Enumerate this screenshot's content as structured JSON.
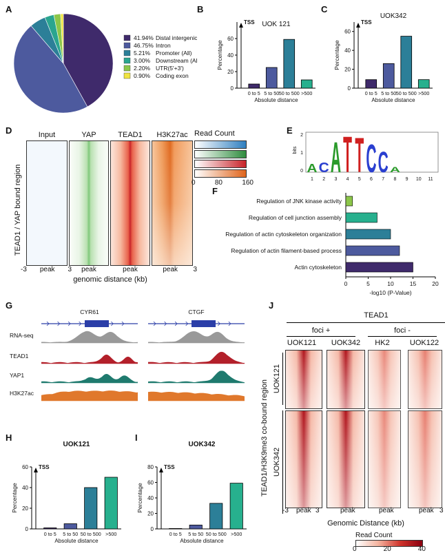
{
  "panels": {
    "A": {
      "label": "A",
      "chart_data": {
        "type": "pie",
        "slices": [
          {
            "label": "Distal intergenic",
            "pct_text": "41.94%",
            "value": 41.94,
            "color": "#3f2a6b"
          },
          {
            "label": "Intron",
            "pct_text": "46.75%",
            "value": 46.75,
            "color": "#4d5a9e"
          },
          {
            "label": "Promoter (All)",
            "pct_text": "5.21%",
            "value": 5.21,
            "color": "#2c7f98"
          },
          {
            "label": "Downstream (All)",
            "pct_text": "3.00%",
            "value": 3.0,
            "color": "#2aa58f"
          },
          {
            "label": "UTR(5'+3')",
            "pct_text": "2.20%",
            "value": 2.2,
            "color": "#8cc64a"
          },
          {
            "label": "Coding exon",
            "pct_text": "0.90%",
            "value": 0.9,
            "color": "#f0e442"
          }
        ]
      }
    },
    "B": {
      "label": "B",
      "chart_data": {
        "type": "bar",
        "title": "UOK 121",
        "categories": [
          "0 to 5",
          "5 to 50",
          "50 to 500",
          ">500"
        ],
        "values": [
          5,
          25,
          59,
          10
        ],
        "colors": [
          "#3f2a6b",
          "#4d5a9e",
          "#2c7f98",
          "#27b08e"
        ],
        "ylabel": "Percentage",
        "xlabel": "Absolute distance",
        "yticks": [
          "0",
          "20",
          "40",
          "60"
        ],
        "ylim": [
          0,
          80
        ],
        "annotation": "TSS"
      }
    },
    "C": {
      "label": "C",
      "chart_data": {
        "type": "bar",
        "title": "UOK342",
        "categories": [
          "0 to 5",
          "5 to 50",
          "50 to 500",
          ">500"
        ],
        "values": [
          9,
          26,
          55,
          9
        ],
        "colors": [
          "#3f2a6b",
          "#4d5a9e",
          "#2c7f98",
          "#27b08e"
        ],
        "ylabel": "Percentage",
        "xlabel": "Absolute distance",
        "yticks": [
          "0",
          "20",
          "40",
          "60"
        ],
        "ylim": [
          0,
          70
        ],
        "annotation": "TSS"
      }
    },
    "D": {
      "label": "D",
      "columns": [
        "Input",
        "YAP",
        "TEAD1",
        "H3K27ac"
      ],
      "row_label": "TEAD1 / YAP bound region",
      "xticks": [
        "-3",
        "peak",
        "3"
      ],
      "xlabel": "genomic distance (kb)",
      "legend_title": "Read Count",
      "legend_ticks": [
        "0",
        "80",
        "160"
      ],
      "colors": [
        "#2f7fc0",
        "#2f8c3e",
        "#c8242a",
        "#e0651c"
      ]
    },
    "E": {
      "label": "E",
      "ylabel": "bits",
      "yticks": [
        "0",
        "1",
        "2"
      ],
      "positions": [
        "1",
        "2",
        "3",
        "4",
        "5",
        "6",
        "7",
        "8",
        "9",
        "10",
        "11"
      ],
      "letters": [
        "A",
        "C",
        "A",
        "T",
        "T",
        "C",
        "C",
        "A"
      ]
    },
    "F": {
      "label": "F",
      "chart_data": {
        "type": "bar",
        "orientation": "horizontal",
        "categories": [
          "Regulation of JNK kinase activity",
          "Regulation of cell junction assembly",
          "Regulation of actin cytoskeleton organization",
          "Regulation of actin filament-based process",
          "Actin cytoskeleton"
        ],
        "values": [
          1.5,
          7,
          10,
          12,
          15
        ],
        "colors": [
          "#8cc64a",
          "#27b08e",
          "#2c7f98",
          "#4d5a9e",
          "#3f2a6b"
        ],
        "xlabel": "-log10 (P-Value)",
        "xticks": [
          "0",
          "5",
          "10",
          "15",
          "20"
        ],
        "xlim": [
          0,
          20
        ]
      }
    },
    "G": {
      "label": "G",
      "genes": [
        "CYR61",
        "CTGF"
      ],
      "tracks": [
        "RNA-seq",
        "TEAD1",
        "YAP1",
        "H3K27ac"
      ],
      "track_colors": [
        "#999999",
        "#b3202a",
        "#1f7a6e",
        "#e0782c"
      ],
      "gene_color": "#2b3ea8"
    },
    "H": {
      "label": "H",
      "chart_data": {
        "type": "bar",
        "title": "UOK121",
        "categories": [
          "0 to 5",
          "5 to 50",
          "50 to 500",
          ">500"
        ],
        "values": [
          1,
          5,
          40,
          50
        ],
        "colors": [
          "#3f2a6b",
          "#4d5a9e",
          "#2c7f98",
          "#27b08e"
        ],
        "ylabel": "Percentage",
        "xlabel": "Absolute distance",
        "yticks": [
          "0",
          "20",
          "40",
          "60"
        ],
        "ylim": [
          0,
          60
        ],
        "annotation": "TSS"
      }
    },
    "I": {
      "label": "I",
      "chart_data": {
        "type": "bar",
        "title": "UOK342",
        "categories": [
          "0 to 5",
          "5 to 50",
          "50 to 500",
          ">500"
        ],
        "values": [
          0.5,
          5,
          33,
          59
        ],
        "colors": [
          "#3f2a6b",
          "#4d5a9e",
          "#2c7f98",
          "#27b08e"
        ],
        "ylabel": "Percentage",
        "xlabel": "Absolute distance",
        "yticks": [
          "0",
          "20",
          "40",
          "60",
          "80"
        ],
        "ylim": [
          0,
          80
        ],
        "annotation": "TSS"
      }
    },
    "J": {
      "label": "J",
      "title": "TEAD1",
      "group_pos": "foci +",
      "group_neg": "foci -",
      "columns": [
        "UOK121",
        "UOK342",
        "HK2",
        "UOK122"
      ],
      "row_groups": [
        "UOK121",
        "UOK342"
      ],
      "row_label": "TEAD1/H3K9me3 co-bound region",
      "xticks": [
        "-3",
        "peak",
        "3"
      ],
      "xlabel": "Genomic Distance (kb)",
      "legend_title": "Read Count",
      "legend_ticks": [
        "0",
        "20",
        "40"
      ]
    }
  }
}
